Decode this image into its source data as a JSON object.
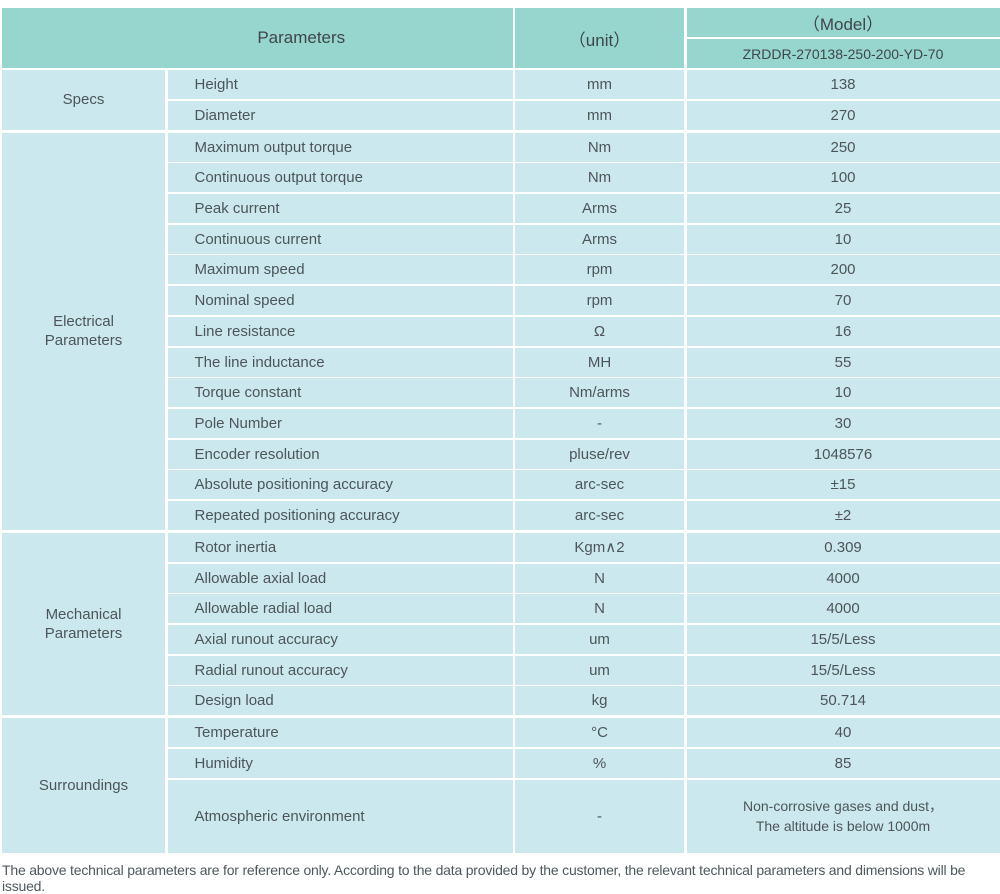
{
  "colors": {
    "header_bg": "#97d6cf",
    "cell_bg": "#cbe8ef",
    "text": "#4d5559"
  },
  "header": {
    "parameters_label": "Parameters",
    "unit_label": "（unit）",
    "model_label": "（Model）",
    "model_value": "ZRDDR-270138-250-200-YD-70"
  },
  "sections": [
    {
      "label": "Specs",
      "rows": [
        {
          "param": "Height",
          "unit": "mm",
          "value": "138"
        },
        {
          "param": "Diameter",
          "unit": "mm",
          "value": "270"
        }
      ]
    },
    {
      "label": "Electrical Parameters",
      "rows": [
        {
          "param": "Maximum output torque",
          "unit": "Nm",
          "value": "250"
        },
        {
          "param": "Continuous output torque",
          "unit": "Nm",
          "value": "100"
        },
        {
          "param": "Peak current",
          "unit": "Arms",
          "value": "25"
        },
        {
          "param": "Continuous current",
          "unit": "Arms",
          "value": "10"
        },
        {
          "param": "Maximum speed",
          "unit": "rpm",
          "value": "200"
        },
        {
          "param": "Nominal speed",
          "unit": "rpm",
          "value": "70"
        },
        {
          "param": "Line resistance",
          "unit": "Ω",
          "value": "16"
        },
        {
          "param": "The line inductance",
          "unit": "MH",
          "value": "55"
        },
        {
          "param": "Torque constant",
          "unit": "Nm/arms",
          "value": "10"
        },
        {
          "param": "Pole Number",
          "unit": "-",
          "value": "30"
        },
        {
          "param": "Encoder resolution",
          "unit": "pluse/rev",
          "value": "1048576"
        },
        {
          "param": "Absolute positioning accuracy",
          "unit": "arc-sec",
          "value": "±15"
        },
        {
          "param": "Repeated positioning accuracy",
          "unit": "arc-sec",
          "value": "±2"
        }
      ]
    },
    {
      "label": "Mechanical Parameters",
      "rows": [
        {
          "param": "Rotor inertia",
          "unit": "Kgm∧2",
          "value": "0.309"
        },
        {
          "param": "Allowable axial load",
          "unit": "N",
          "value": "4000"
        },
        {
          "param": "Allowable radial load",
          "unit": "N",
          "value": "4000"
        },
        {
          "param": "Axial runout accuracy",
          "unit": "um",
          "value": "15/5/Less"
        },
        {
          "param": "Radial runout accuracy",
          "unit": "um",
          "value": "15/5/Less"
        },
        {
          "param": "Design load",
          "unit": "kg",
          "value": "50.714"
        }
      ]
    },
    {
      "label": "Surroundings",
      "rows": [
        {
          "param": "Temperature",
          "unit": "°C",
          "value": "40"
        },
        {
          "param": "Humidity",
          "unit": "%",
          "value": "85"
        },
        {
          "param": "Atmospheric environment",
          "unit": "-",
          "value": "Non-corrosive gases and dust，\nThe altitude is below 1000m"
        }
      ]
    }
  ],
  "footer_note": "The above technical parameters are for reference only. According to the data provided by the customer, the relevant technical parameters and dimensions will be issued."
}
